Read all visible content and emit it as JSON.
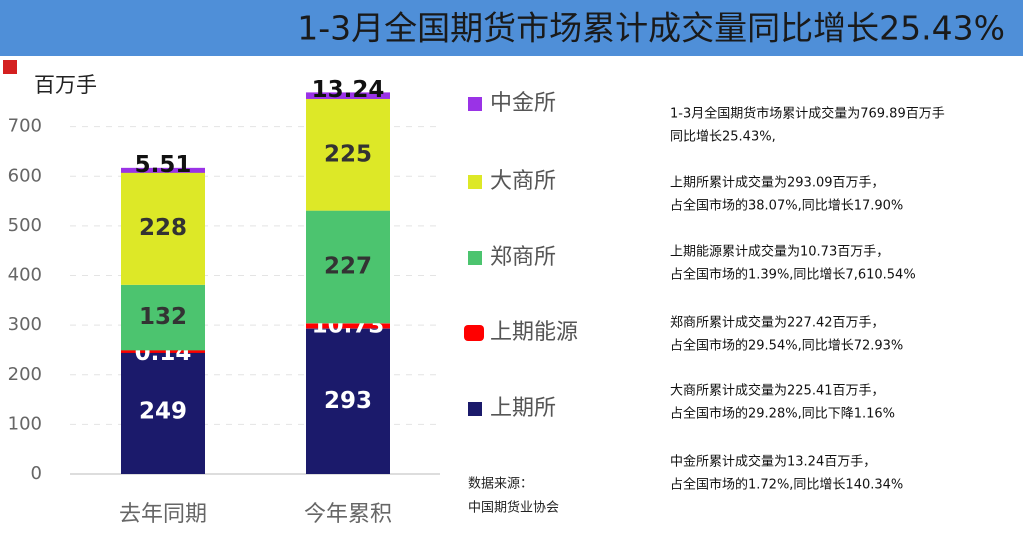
{
  "chart_data": {
    "type": "stacked_bar",
    "title": "1-3月全国期货市场累计成交量同比增长25.43%",
    "y_label": "百万手",
    "categories": [
      "去年同期",
      "今年累积"
    ],
    "series": [
      {
        "name": "上期所",
        "color": "#1b1a6b",
        "label_color": "#ffffff",
        "values": [
          249,
          293
        ]
      },
      {
        "name": "上期能源",
        "color": "#ff0000",
        "label_color": "#ffffff",
        "values": [
          0.14,
          10.73
        ]
      },
      {
        "name": "郑商所",
        "color": "#4cc46f",
        "label_color": "#333333",
        "values": [
          132,
          227
        ]
      },
      {
        "name": "大商所",
        "color": "#dde827",
        "label_color": "#333333",
        "values": [
          228,
          225
        ]
      },
      {
        "name": "中金所",
        "color": "#9a33e6",
        "label_color": "#111111",
        "values": [
          5.51,
          13.24
        ]
      }
    ],
    "ylim": [
      0,
      800
    ],
    "yticks": [
      0,
      100,
      200,
      300,
      400,
      500,
      600,
      700
    ],
    "grid": true,
    "source_label": "数据来源：",
    "source": "中国期货业协会",
    "notes": [
      [
        "1-3月全国期货市场累计成交量为769.89百万手",
        "同比增长25.43%,"
      ],
      [
        "上期所累计成交量为293.09百万手，",
        "占全国市场的38.07%,同比增长17.90%"
      ],
      [
        "上期能源累计成交量为10.73百万手，",
        "占全国市场的1.39%,同比增长7,610.54%"
      ],
      [
        "郑商所累计成交量为227.42百万手，",
        "占全国市场的29.54%,同比增长72.93%"
      ],
      [
        "大商所累计成交量为225.41百万手，",
        "占全国市场的29.28%,同比下降1.16%"
      ],
      [
        "中金所累计成交量为13.24百万手，",
        "占全国市场的1.72%,同比增长140.34%"
      ]
    ]
  }
}
